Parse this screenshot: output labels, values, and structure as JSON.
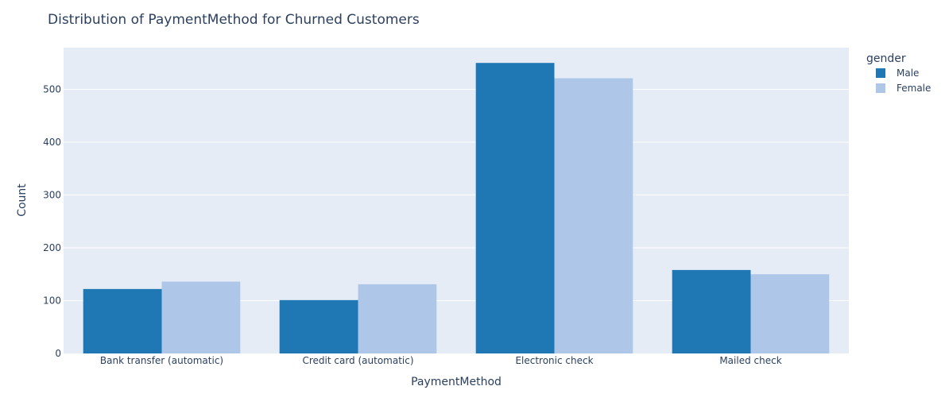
{
  "chart_data": {
    "type": "bar",
    "title": "Distribution of PaymentMethod for Churned Customers",
    "xlabel": "PaymentMethod",
    "ylabel": "Count",
    "categories": [
      "Bank transfer (automatic)",
      "Credit card (automatic)",
      "Electronic check",
      "Mailed check"
    ],
    "series": [
      {
        "name": "Male",
        "color": "#1f77b4",
        "values": [
          122,
          101,
          550,
          158
        ]
      },
      {
        "name": "Female",
        "color": "#aec7e8",
        "values": [
          136,
          131,
          521,
          150
        ]
      }
    ],
    "ylim": [
      0,
      578.9
    ],
    "yticks": [
      0,
      100,
      200,
      300,
      400,
      500
    ],
    "legend_title": "gender",
    "legend_position": "top-right",
    "grid": true,
    "plot_background": "#e5ecf6"
  }
}
